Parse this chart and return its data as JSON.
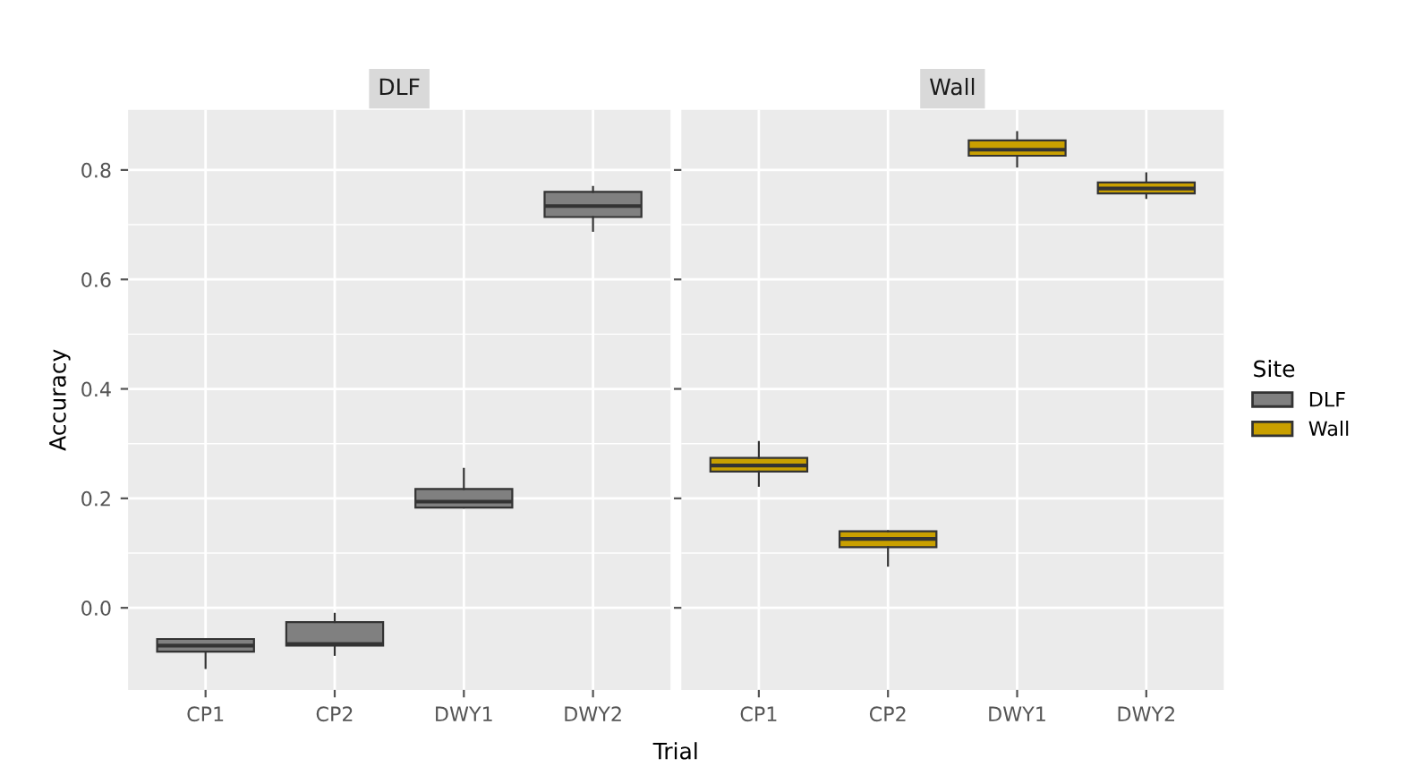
{
  "chart_data": [
    {
      "type": "box",
      "title": "DLF",
      "xlabel": "Trial",
      "ylabel": "Accuracy",
      "categories": [
        "CP1",
        "CP2",
        "DWY1",
        "DWY2"
      ],
      "ylim": [
        -0.15,
        0.91
      ],
      "yticks": [
        {
          "value": 0,
          "label": "0.0"
        },
        0.2,
        0.4,
        0.6,
        0.8
      ],
      "grid": true,
      "series": [
        {
          "name": "DLF",
          "color": "#808080",
          "boxes": [
            {
              "low": -0.11,
              "q1": -0.08,
              "median": -0.069,
              "q3": -0.057,
              "high": -0.057
            },
            {
              "low": -0.086,
              "q1": -0.069,
              "median": -0.066,
              "q3": -0.026,
              "high": -0.011
            },
            {
              "low": 0.183,
              "q1": 0.183,
              "median": 0.194,
              "q3": 0.217,
              "high": 0.254
            },
            {
              "low": 0.689,
              "q1": 0.714,
              "median": 0.734,
              "q3": 0.76,
              "high": 0.769
            }
          ]
        }
      ]
    },
    {
      "type": "box",
      "title": "Wall",
      "categories": [
        "CP1",
        "CP2",
        "DWY1",
        "DWY2"
      ],
      "ylim": [
        -0.15,
        0.91
      ],
      "yticks": [
        {
          "value": 0,
          "label": null
        },
        {
          "value": 0.2,
          "label": null
        },
        {
          "value": 0.4,
          "label": null
        },
        {
          "value": 0.6,
          "label": null
        },
        {
          "value": 0.8,
          "label": null
        }
      ],
      "grid": true,
      "tick_labels": "x",
      "legend": "right",
      "legend_title": "Site",
      "series": [
        {
          "name": "Wall",
          "color": "#c9a000",
          "boxes": [
            {
              "low": 0.223,
              "q1": 0.249,
              "median": 0.26,
              "q3": 0.274,
              "high": 0.303
            },
            {
              "low": 0.077,
              "q1": 0.111,
              "median": 0.126,
              "q3": 0.14,
              "high": 0.14
            },
            {
              "low": 0.806,
              "q1": 0.826,
              "median": 0.837,
              "q3": 0.854,
              "high": 0.869
            },
            {
              "low": 0.749,
              "q1": 0.757,
              "median": 0.766,
              "q3": 0.777,
              "high": 0.794
            }
          ]
        }
      ]
    }
  ]
}
